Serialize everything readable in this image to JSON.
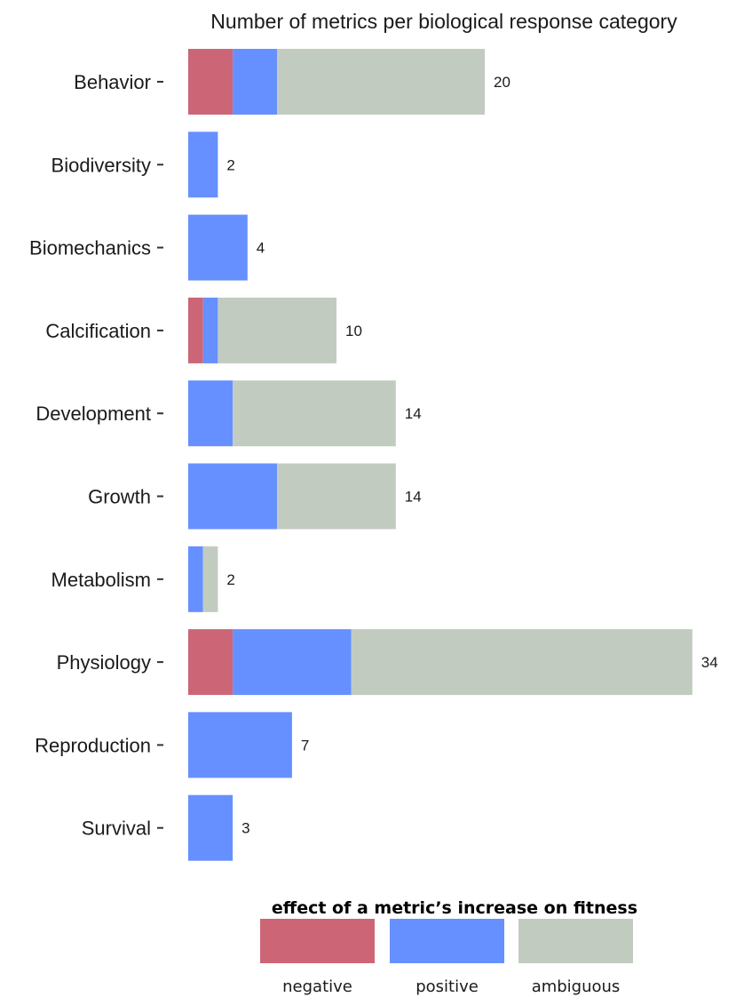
{
  "chart_data": {
    "type": "bar",
    "orientation": "horizontal",
    "stacked": true,
    "title": "Number of metrics per biological response category",
    "xlabel": "",
    "ylabel": "",
    "categories": [
      "Behavior",
      "Biodiversity",
      "Biomechanics",
      "Calcification",
      "Development",
      "Growth",
      "Metabolism",
      "Physiology",
      "Reproduction",
      "Survival"
    ],
    "series": [
      {
        "name": "negative",
        "color": "#cc6677",
        "values": [
          3,
          0,
          0,
          1,
          0,
          0,
          0,
          3,
          0,
          0
        ]
      },
      {
        "name": "positive",
        "color": "#6690ff",
        "values": [
          3,
          2,
          4,
          1,
          3,
          6,
          1,
          8,
          7,
          3
        ]
      },
      {
        "name": "ambiguous",
        "color": "#c2cbc0",
        "values": [
          14,
          0,
          0,
          8,
          11,
          8,
          1,
          23,
          0,
          0
        ]
      }
    ],
    "totals": [
      "20",
      "2",
      "4",
      "10",
      "14",
      "14",
      "2",
      "34",
      "7",
      "3"
    ],
    "xlim": [
      0,
      34
    ],
    "grid": false,
    "legend": {
      "title": "effect of a metric’s increase on fitness",
      "position": "bottom"
    }
  }
}
